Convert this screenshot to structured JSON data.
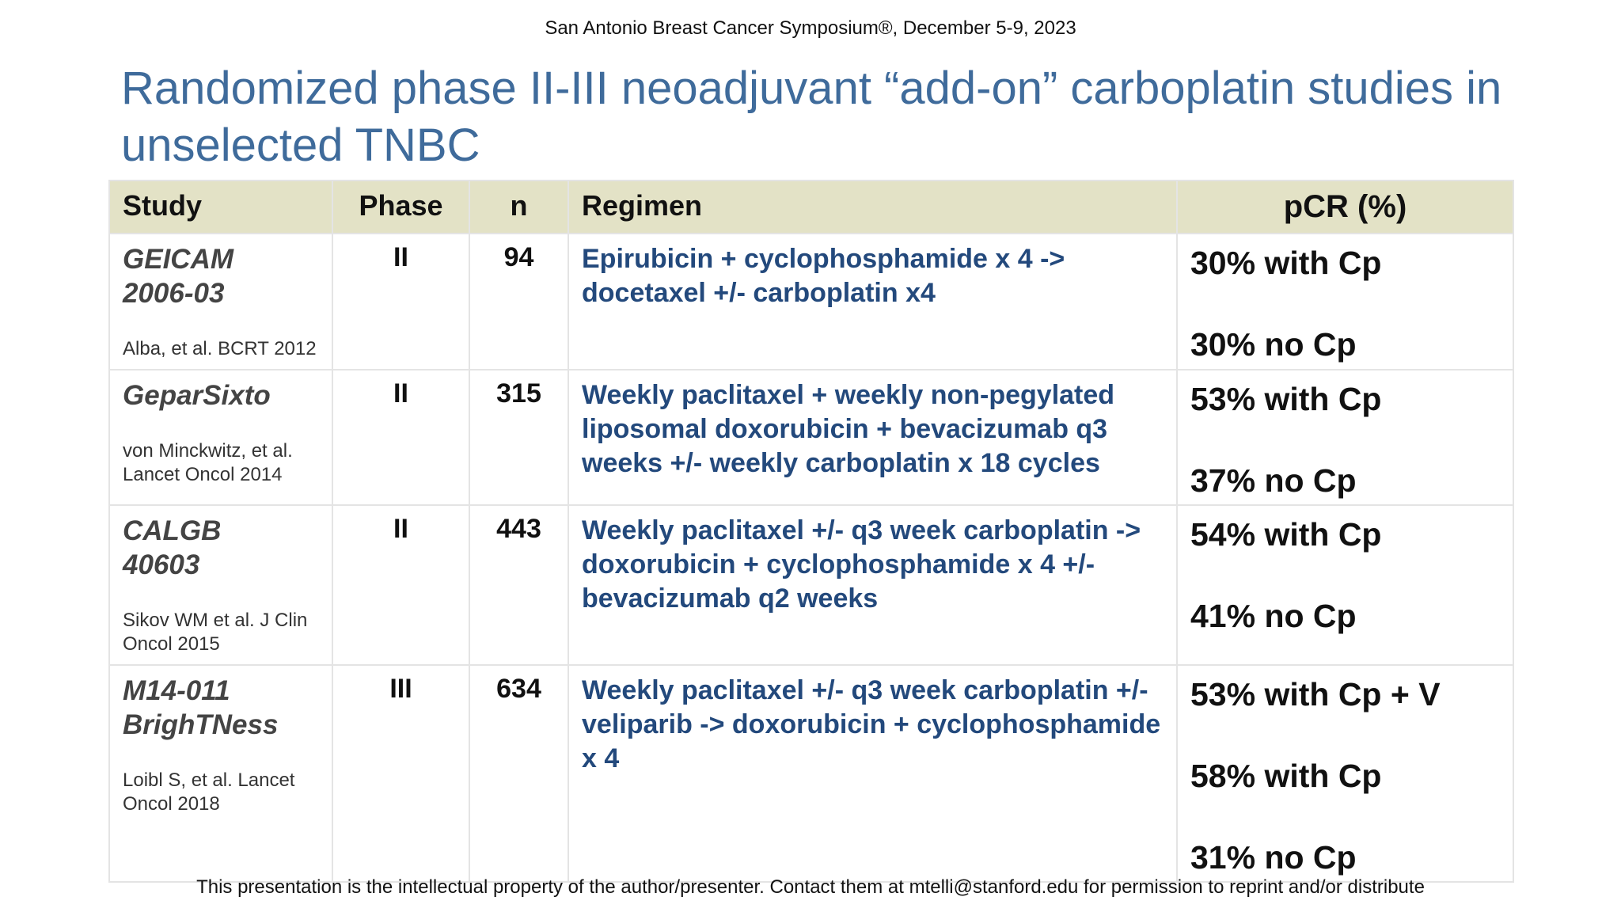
{
  "header": {
    "conference": "San Antonio Breast Cancer Symposium®, December 5-9, 2023",
    "title": "Randomized phase II-III neoadjuvant “add-on” carboplatin studies in unselected TNBC"
  },
  "table": {
    "columns": [
      "Study",
      "Phase",
      "n",
      "Regimen",
      "pCR (%)"
    ],
    "rows": [
      {
        "study": "GEICAM 2006-03",
        "citation": "Alba, et al. BCRT 2012",
        "phase": "II",
        "n": 94,
        "regimen": "Epirubicin + cyclophosphamide x 4 -> docetaxel +/- carboplatin x4",
        "pcr": [
          "30% with Cp",
          "30% no Cp"
        ]
      },
      {
        "study": "GeparSixto",
        "citation": "von Minckwitz, et al. Lancet Oncol 2014",
        "phase": "II",
        "n": 315,
        "regimen": "Weekly paclitaxel + weekly non-pegylated liposomal doxorubicin + bevacizumab q3 weeks +/- weekly carboplatin x 18 cycles",
        "pcr": [
          "53% with Cp",
          "37% no Cp"
        ]
      },
      {
        "study": "CALGB 40603",
        "citation": "Sikov WM et al. J Clin Oncol 2015",
        "phase": "II",
        "n": 443,
        "regimen": "Weekly paclitaxel +/- q3 week carboplatin -> doxorubicin + cyclophosphamide x 4 +/- bevacizumab q2 weeks",
        "pcr": [
          "54% with Cp",
          "41% no Cp"
        ]
      },
      {
        "study": "M14-011 BrighTNess",
        "citation": "Loibl S, et al. Lancet Oncol 2018",
        "phase": "III",
        "n": 634,
        "regimen": "Weekly paclitaxel +/- q3 week carboplatin +/- veliparib -> doxorubicin + cyclophosphamide x 4",
        "pcr": [
          "53% with Cp + V",
          "58% with Cp",
          "31% no Cp"
        ]
      }
    ]
  },
  "footer": "This presentation is the intellectual property of the author/presenter. Contact them at mtelli@stanford.edu for permission to reprint and/or distribute"
}
